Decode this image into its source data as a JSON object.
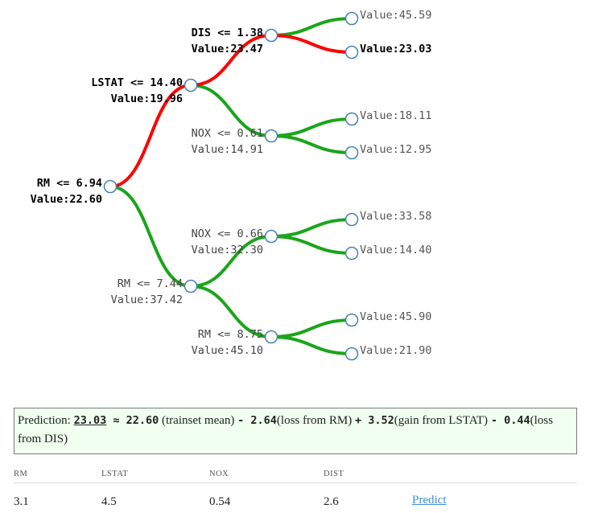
{
  "tree": {
    "colors": {
      "path": "#ff0000",
      "other": "#1aa51a",
      "circle_stroke": "#4682b4"
    },
    "nodes": {
      "root": {
        "line1": "RM <= 6.94",
        "line2": "Value:22.60"
      },
      "l": {
        "line1": "LSTAT <= 14.40",
        "line2": "Value:19.96"
      },
      "r": {
        "line1": "RM <= 7.44",
        "line2": "Value:37.42"
      },
      "ll": {
        "line1": "DIS <= 1.38",
        "line2": "Value:23.47"
      },
      "lr": {
        "line1": "NOX <= 0.61",
        "line2": "Value:14.91"
      },
      "rl": {
        "line1": "NOX <= 0.66",
        "line2": "Value:32.30"
      },
      "rr": {
        "line1": "RM <= 8.75",
        "line2": "Value:45.10"
      }
    },
    "leaves": [
      "Value:45.59",
      "Value:23.03",
      "Value:18.11",
      "Value:12.95",
      "Value:33.58",
      "Value:14.40",
      "Value:45.90",
      "Value:21.90"
    ]
  },
  "explanation": {
    "prefix": "Prediction: ",
    "prediction": "23.03",
    "approx": " ≈ ",
    "mean": "22.60",
    "mean_label": " (trainset mean) ",
    "terms": [
      {
        "op": "- ",
        "value": "2.64",
        "label": "(loss from RM) "
      },
      {
        "op": "+ ",
        "value": "3.52",
        "label": "(gain from LSTAT) "
      },
      {
        "op": "- ",
        "value": "0.44",
        "label": "(loss from DIS)"
      }
    ]
  },
  "inputs": {
    "headers": [
      "RM",
      "LSTAT",
      "NOX",
      "DIST"
    ],
    "values": [
      "3.1",
      "4.5",
      "0.54",
      "2.6"
    ],
    "predict_label": "Predict"
  }
}
